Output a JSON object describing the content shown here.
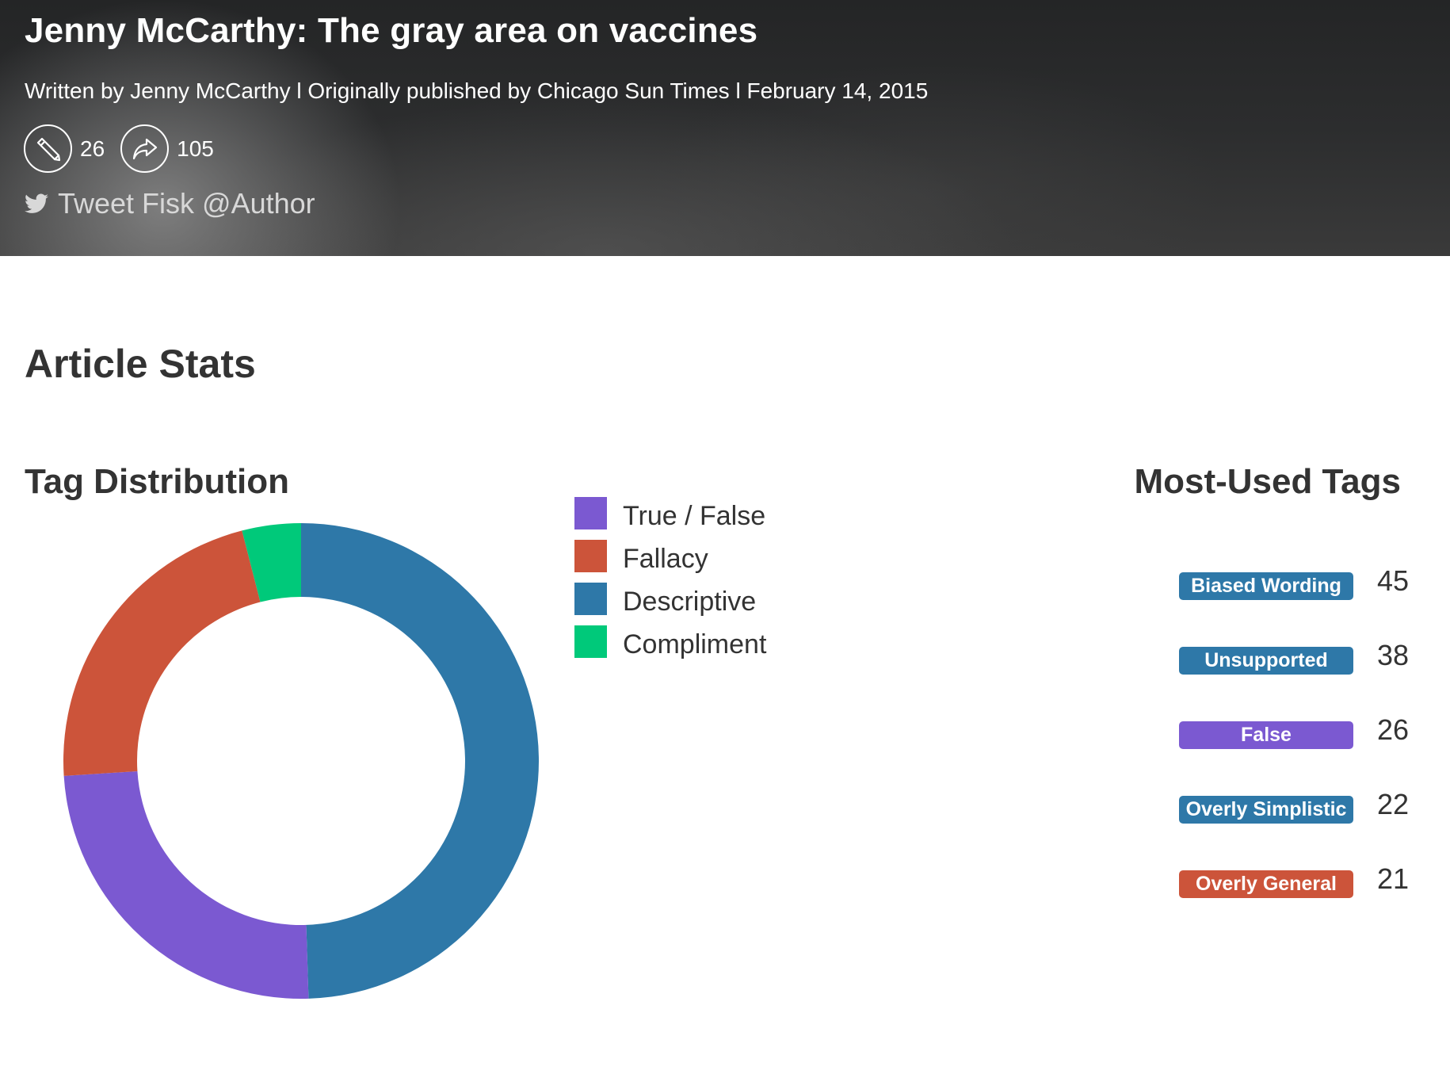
{
  "header": {
    "title": "Jenny McCarthy: The gray area on vaccines",
    "byline": {
      "author": "Written by Jenny McCarthy",
      "separator": "l",
      "publisher": "Originally published by Chicago Sun Times",
      "date": "February 14, 2015"
    },
    "stats": {
      "edits_icon": "pencil-icon",
      "edits_count": "26",
      "shares_icon": "share-icon",
      "shares_count": "105"
    },
    "tweet": {
      "icon": "twitter-icon",
      "label": "Tweet Fisk @Author"
    }
  },
  "main": {
    "section_title": "Article Stats",
    "distribution_title": "Tag Distribution",
    "most_used_title": "Most-Used Tags",
    "most_used_tags": [
      {
        "label": "Biased Wording",
        "count": "45",
        "color": "#2e78a8"
      },
      {
        "label": "Unsupported",
        "count": "38",
        "color": "#2e78a8"
      },
      {
        "label": "False",
        "count": "26",
        "color": "#7b59d1"
      },
      {
        "label": "Overly Simplistic",
        "count": "22",
        "color": "#2e78a8"
      },
      {
        "label": "Overly General",
        "count": "21",
        "color": "#cc543a"
      }
    ]
  },
  "chart_data": {
    "type": "pie",
    "variant": "donut",
    "title": "Tag Distribution",
    "legend_position": "right",
    "categories": [
      "True / False",
      "Fallacy",
      "Descriptive",
      "Compliment"
    ],
    "values": [
      24.5,
      22,
      49.5,
      4
    ],
    "colors": [
      "#7b59d1",
      "#cc543a",
      "#2e78a8",
      "#00c97a"
    ]
  }
}
